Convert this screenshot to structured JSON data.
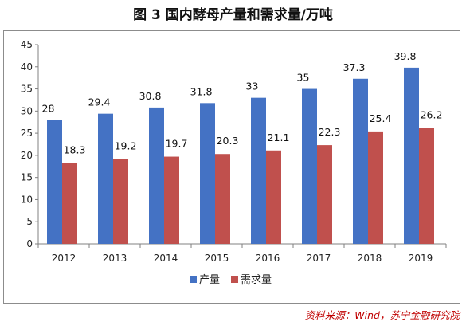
{
  "title": "图 3  国内酵母产量和需求量/万吨",
  "source": "资料来源：Wind，苏宁金融研究院",
  "chart_data": {
    "type": "bar",
    "categories": [
      "2012",
      "2013",
      "2014",
      "2015",
      "2016",
      "2017",
      "2018",
      "2019"
    ],
    "series": [
      {
        "name": "产量",
        "color": "#4472c4",
        "values": [
          28,
          29.4,
          30.8,
          31.8,
          33,
          35,
          37.3,
          39.8
        ]
      },
      {
        "name": "需求量",
        "color": "#c0504d",
        "values": [
          18.3,
          19.2,
          19.7,
          20.3,
          21.1,
          22.3,
          25.4,
          26.2
        ]
      }
    ],
    "ylim": [
      0,
      45
    ],
    "yticks": [
      0,
      5,
      10,
      15,
      20,
      25,
      30,
      35,
      40,
      45
    ],
    "xlabel": "",
    "ylabel": "",
    "grid": false,
    "legend": "bottom"
  }
}
